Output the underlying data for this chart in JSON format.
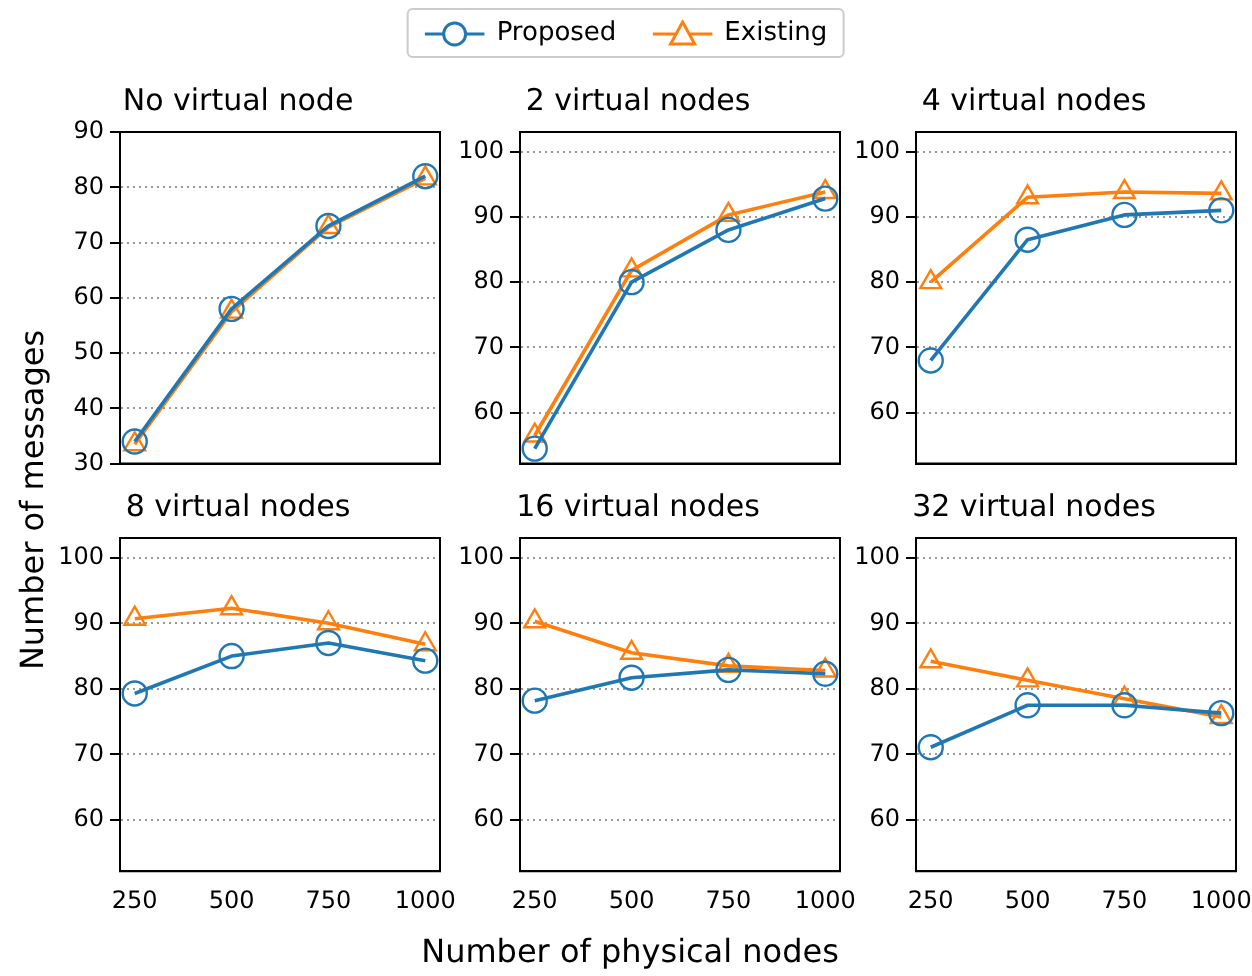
{
  "chart_data": [
    {
      "type": "line",
      "title": "No virtual node",
      "ylabel": "Number of messages",
      "legend": "top",
      "x": [
        250,
        500,
        750,
        1000
      ],
      "xlim": [
        212,
        1038
      ],
      "xticks": [
        250,
        500,
        750,
        1000
      ],
      "ylim": [
        30,
        90
      ],
      "yticks": [
        30,
        40,
        50,
        60,
        70,
        80,
        90
      ],
      "grid": "y",
      "tick_labels": "y",
      "line_style": "solid",
      "series": [
        {
          "name": "Proposed",
          "color": "#1f77b4",
          "marker": "circle",
          "values": [
            34,
            58,
            73,
            82
          ]
        },
        {
          "name": "Existing",
          "color": "#ff7f0e",
          "marker": "triangle",
          "values": [
            33.5,
            57.5,
            72.8,
            81.6
          ]
        }
      ]
    },
    {
      "type": "line",
      "title": "2 virtual nodes",
      "x": [
        250,
        500,
        750,
        1000
      ],
      "xlim": [
        212,
        1038
      ],
      "xticks": [
        250,
        500,
        750,
        1000
      ],
      "ylim": [
        52.2,
        103
      ],
      "yticks": [
        60,
        70,
        80,
        90,
        100
      ],
      "grid": "y",
      "tick_labels": "y",
      "line_style": "solid",
      "series": [
        {
          "color": "#1f77b4",
          "marker": "circle",
          "values": [
            54.5,
            80,
            88,
            92.8
          ]
        },
        {
          "color": "#ff7f0e",
          "marker": "triangle",
          "values": [
            56.5,
            81.8,
            90.3,
            93.8
          ]
        }
      ]
    },
    {
      "type": "line",
      "title": "4 virtual nodes",
      "x": [
        250,
        500,
        750,
        1000
      ],
      "xlim": [
        212,
        1038
      ],
      "xticks": [
        250,
        500,
        750,
        1000
      ],
      "ylim": [
        52.2,
        103
      ],
      "yticks": [
        60,
        70,
        80,
        90,
        100
      ],
      "grid": "y",
      "tick_labels": "y",
      "line_style": "solid",
      "series": [
        {
          "color": "#1f77b4",
          "marker": "circle",
          "values": [
            68,
            86.5,
            90.3,
            91
          ]
        },
        {
          "color": "#ff7f0e",
          "marker": "triangle",
          "values": [
            80,
            93,
            93.8,
            93.6
          ]
        }
      ]
    },
    {
      "type": "line",
      "title": "8 virtual nodes",
      "x": [
        250,
        500,
        750,
        1000
      ],
      "xlim": [
        212,
        1038
      ],
      "xticks": [
        250,
        500,
        750,
        1000
      ],
      "ylim": [
        52.2,
        103
      ],
      "yticks": [
        60,
        70,
        80,
        90,
        100
      ],
      "grid": "y",
      "line_style": "solid",
      "series": [
        {
          "color": "#1f77b4",
          "marker": "circle",
          "values": [
            79.3,
            85,
            87,
            84.3
          ]
        },
        {
          "color": "#ff7f0e",
          "marker": "triangle",
          "values": [
            90.7,
            92.3,
            90,
            86.8
          ]
        }
      ]
    },
    {
      "type": "line",
      "title": "16 virtual nodes",
      "xlabel": "Number of physical nodes",
      "x": [
        250,
        500,
        750,
        1000
      ],
      "xlim": [
        212,
        1038
      ],
      "xticks": [
        250,
        500,
        750,
        1000
      ],
      "ylim": [
        52.2,
        103
      ],
      "yticks": [
        60,
        70,
        80,
        90,
        100
      ],
      "grid": "y",
      "line_style": "solid",
      "series": [
        {
          "color": "#1f77b4",
          "marker": "circle",
          "values": [
            78.2,
            81.7,
            82.9,
            82.3
          ]
        },
        {
          "color": "#ff7f0e",
          "marker": "triangle",
          "values": [
            90.3,
            85.5,
            83.5,
            82.8
          ]
        }
      ]
    },
    {
      "type": "line",
      "title": "32 virtual nodes",
      "x": [
        250,
        500,
        750,
        1000
      ],
      "xlim": [
        212,
        1038
      ],
      "xticks": [
        250,
        500,
        750,
        1000
      ],
      "ylim": [
        52.2,
        103
      ],
      "yticks": [
        60,
        70,
        80,
        90,
        100
      ],
      "grid": "y",
      "line_style": "solid",
      "series": [
        {
          "color": "#1f77b4",
          "marker": "circle",
          "values": [
            71.1,
            77.5,
            77.5,
            76.3
          ]
        },
        {
          "color": "#ff7f0e",
          "marker": "triangle",
          "values": [
            84.2,
            81.3,
            78.5,
            75.7
          ]
        }
      ]
    }
  ]
}
